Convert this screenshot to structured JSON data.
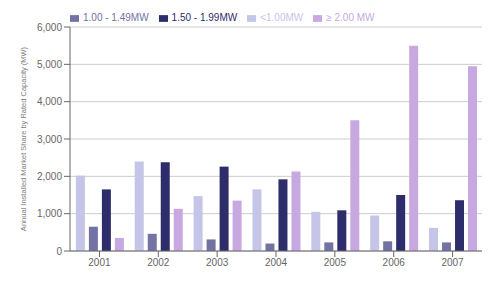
{
  "chart_data": {
    "type": "bar",
    "categories": [
      "2001",
      "2002",
      "2003",
      "2004",
      "2005",
      "2006",
      "2007"
    ],
    "series": [
      {
        "name": "<1.00MW",
        "color": "#c5c5e8",
        "values": [
          2020,
          2400,
          1470,
          1650,
          1050,
          950,
          620
        ]
      },
      {
        "name": "1.00 - 1.49MW",
        "color": "#7272a4",
        "values": [
          650,
          460,
          310,
          200,
          230,
          260,
          230
        ]
      },
      {
        "name": "1.50 - 1.99MW",
        "color": "#2d2d6b",
        "values": [
          1650,
          2380,
          2260,
          1920,
          1090,
          1500,
          1360
        ]
      },
      {
        "name": "≥ 2.00 MW",
        "color": "#c8a8e0",
        "values": [
          350,
          1130,
          1350,
          2130,
          3500,
          5500,
          4950
        ]
      }
    ],
    "ylabel": "Annual Installed Market Share by Rated Capacity (MW)",
    "ylim": [
      0,
      6000
    ],
    "yticks": [
      0,
      {
        "value": 1000,
        "label": "1,000"
      },
      {
        "value": 2000,
        "label": "2,000"
      },
      {
        "value": 3000,
        "label": "3,000"
      },
      {
        "value": 4000,
        "label": "4,000"
      },
      {
        "value": 5000,
        "label": "5,000"
      },
      {
        "value": 6000,
        "label": "6,000"
      }
    ],
    "grid": true,
    "legend": "upper left"
  }
}
